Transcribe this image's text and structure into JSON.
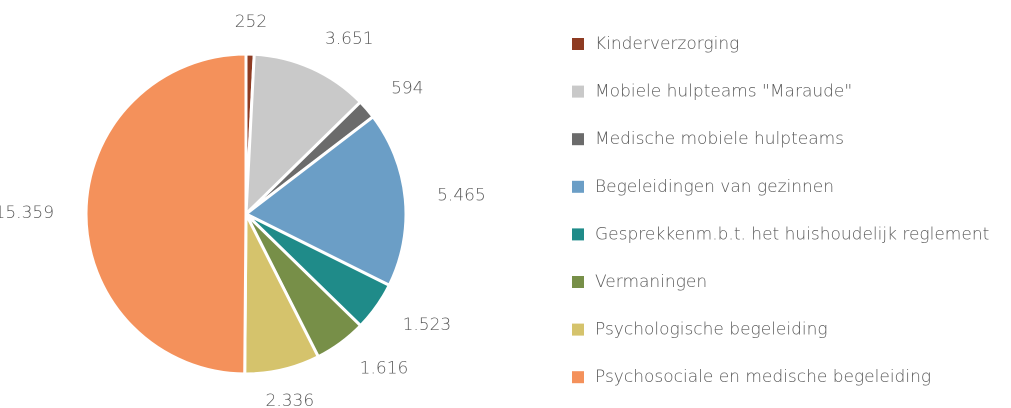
{
  "chart_data": {
    "type": "pie",
    "categories": [
      "Kinderverzorging",
      "Mobiele hulpteams \"Maraude\"",
      "Medische mobiele hulpteams",
      "Begeleidingen van gezinnen",
      "Gesprekkenm.b.t. het huishoudelijk reglement",
      "Vermaningen",
      "Psychologische begeleiding",
      "Psychosociale en medische begeleiding"
    ],
    "values": [
      252,
      3651,
      594,
      5465,
      1523,
      1616,
      2336,
      15359
    ],
    "value_labels": [
      "252",
      "3.651",
      "594",
      "5.465",
      "1.523",
      "1.616",
      "2.336",
      "15.359"
    ],
    "colors": [
      "#8e3b22",
      "#c9c9c9",
      "#6b6b6b",
      "#6b9ec6",
      "#1f8b89",
      "#778f48",
      "#d5c36c",
      "#f4915b"
    ],
    "legend": "right"
  }
}
